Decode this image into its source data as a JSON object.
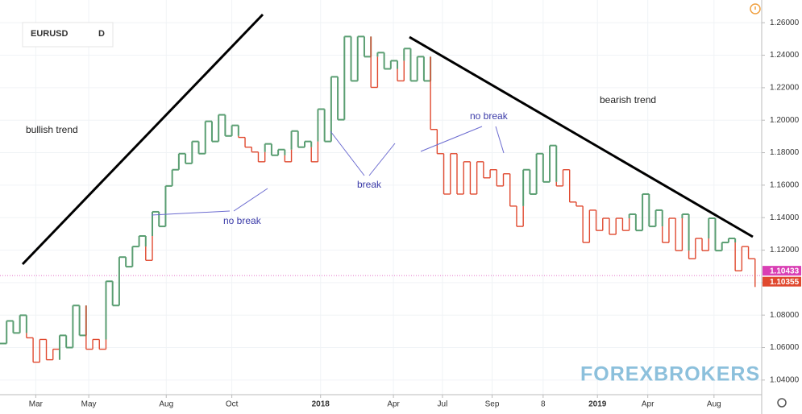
{
  "chart_data": {
    "type": "kagi",
    "symbol": "EURUSD",
    "interval": "D",
    "values": [
      1.0625,
      1.0764,
      1.069,
      1.0799,
      1.066,
      1.051,
      1.065,
      1.0525,
      1.059,
      1.0675,
      1.06,
      1.0859,
      1.0675,
      1.059,
      1.065,
      1.059,
      1.1008,
      1.0859,
      1.1157,
      1.1098,
      1.1222,
      1.1287,
      1.1137,
      1.1436,
      1.1346,
      1.1595,
      1.1695,
      1.1794,
      1.1734,
      1.1869,
      1.1794,
      1.1993,
      1.1869,
      1.2033,
      1.1903,
      1.1968,
      1.1894,
      1.1834,
      1.1804,
      1.1744,
      1.1854,
      1.1784,
      1.1819,
      1.1744,
      1.1933,
      1.1834,
      1.1869,
      1.1744,
      1.2068,
      1.1869,
      1.2267,
      1.2003,
      1.2515,
      1.2242,
      1.2515,
      1.2391,
      1.2202,
      1.2416,
      1.2316,
      1.2366,
      1.2242,
      1.2441,
      1.2242,
      1.2391,
      1.2242,
      1.1943,
      1.1794,
      1.1545,
      1.1794,
      1.1545,
      1.1744,
      1.1545,
      1.1744,
      1.1645,
      1.1695,
      1.1595,
      1.167,
      1.1471,
      1.1346,
      1.1695,
      1.1545,
      1.1794,
      1.162,
      1.1844,
      1.1595,
      1.1695,
      1.1496,
      1.1471,
      1.1247,
      1.1446,
      1.1321,
      1.1396,
      1.1297,
      1.1396,
      1.1321,
      1.1421,
      1.1321,
      1.1545,
      1.1346,
      1.1446,
      1.1247,
      1.1396,
      1.1197,
      1.1421,
      1.1147,
      1.1272,
      1.1197,
      1.1396,
      1.1197,
      1.1247,
      1.1272,
      1.1073,
      1.1222,
      1.1147,
      1.0973
    ],
    "yang_color": "#5a9e72",
    "yin_color": "#e0492f",
    "ylim": [
      1.031,
      1.274
    ],
    "xlim": [
      0,
      115
    ],
    "yticks": [
      {
        "value": 1.04,
        "label": "1.04000"
      },
      {
        "value": 1.06,
        "label": "1.06000"
      },
      {
        "value": 1.08,
        "label": "1.08000"
      },
      {
        "value": 1.1,
        "label": "1.10000"
      },
      {
        "value": 1.12,
        "label": "1.12000"
      },
      {
        "value": 1.14,
        "label": "1.14000"
      },
      {
        "value": 1.16,
        "label": "1.16000"
      },
      {
        "value": 1.18,
        "label": "1.18000"
      },
      {
        "value": 1.2,
        "label": "1.20000"
      },
      {
        "value": 1.22,
        "label": "1.22000"
      },
      {
        "value": 1.24,
        "label": "1.24000"
      },
      {
        "value": 1.26,
        "label": "1.26000"
      }
    ],
    "xticks": [
      {
        "value": 5.4,
        "label": "Mar"
      },
      {
        "value": 13.4,
        "label": "May"
      },
      {
        "value": 25.1,
        "label": "Aug"
      },
      {
        "value": 35,
        "label": "Oct"
      },
      {
        "value": 48.4,
        "label": "2018"
      },
      {
        "value": 59.4,
        "label": "Apr"
      },
      {
        "value": 66.8,
        "label": "Jul"
      },
      {
        "value": 74.3,
        "label": "Sep"
      },
      {
        "value": 82,
        "label": "8"
      },
      {
        "value": 90.2,
        "label": "2019"
      },
      {
        "value": 97.8,
        "label": "Apr"
      },
      {
        "value": 107.8,
        "label": "Aug"
      }
    ],
    "grid": true,
    "price_labels": [
      {
        "value": 1.10433,
        "color": "#d93fb4"
      },
      {
        "value": 1.10355,
        "color": "#e0492f"
      }
    ],
    "annotations": [
      "bullish trend",
      "bearish trend",
      "no break",
      "break",
      "no break"
    ],
    "watermark": "FOREXBROKERS"
  }
}
